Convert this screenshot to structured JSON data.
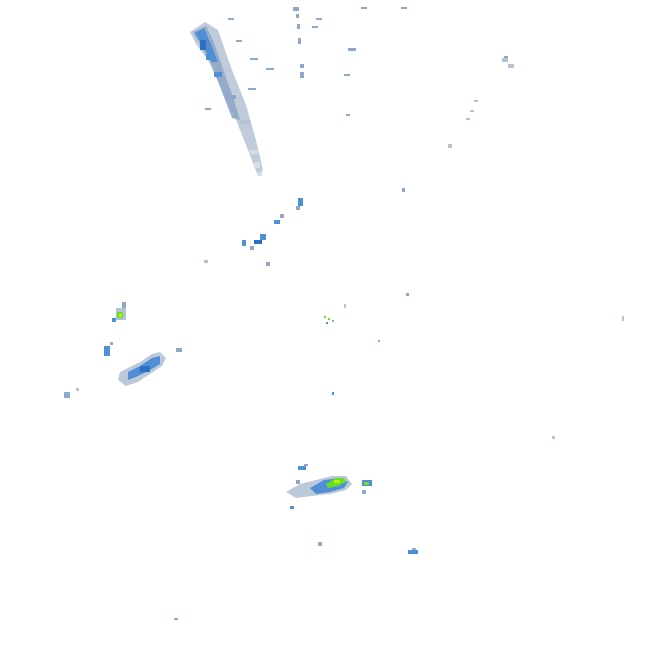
{
  "map": {
    "kind": "weather-radar-reflectivity",
    "background_color": "#ffffff",
    "palette": {
      "echo_faint": "#d7dde6",
      "echo_light": "#b5c3d4",
      "echo_medium": "#8fa8c8",
      "echo_blue": "#4f8fd6",
      "echo_deep_blue": "#2f6fc4",
      "echo_green": "#66e01f",
      "echo_yellow_green": "#b6f21a"
    },
    "echo_regions": [
      {
        "name": "north-radial-streak",
        "intensity": "medium"
      },
      {
        "name": "central-north-scatter",
        "intensity": "light"
      },
      {
        "name": "west-cell-small",
        "intensity": "strong"
      },
      {
        "name": "west-band",
        "intensity": "medium"
      },
      {
        "name": "south-cell-cluster",
        "intensity": "strong"
      },
      {
        "name": "southeast-small-cell",
        "intensity": "medium"
      },
      {
        "name": "radar-center-clutter",
        "intensity": "light"
      },
      {
        "name": "northeast-speckles",
        "intensity": "faint"
      }
    ]
  }
}
